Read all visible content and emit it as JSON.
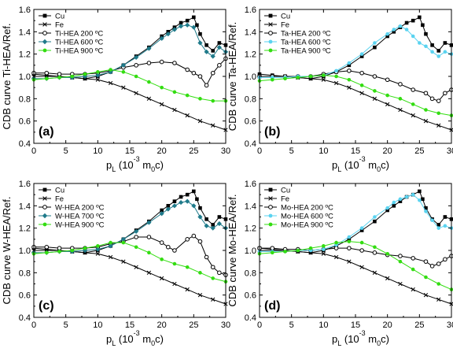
{
  "x_tick_labels": [
    "0",
    "5",
    "10",
    "15",
    "20",
    "25",
    "30"
  ],
  "y_tick_labels": [
    "0.4",
    "0.6",
    "0.8",
    "1.0",
    "1.2",
    "1.4",
    "1.6"
  ],
  "chart_data": [
    {
      "type": "line",
      "panel_label": "(a)",
      "ylabel": "CDB curve Ti-HEA/Ref.",
      "xlabel_main": "p",
      "xlabel_sub": "L",
      "xlabel_paren_open": " (10",
      "xlabel_exp": "-3",
      "xlabel_m": " m",
      "xlabel_msub": "0",
      "xlabel_end": "c)",
      "xlim": [
        0,
        30
      ],
      "ylim": [
        0.4,
        1.6
      ],
      "grid": false,
      "legend": "top-left",
      "x_ticks": [
        0,
        5,
        10,
        15,
        20,
        25,
        30
      ],
      "y_ticks": [
        0.4,
        0.6,
        0.8,
        1.0,
        1.2,
        1.4,
        1.6
      ],
      "series": [
        {
          "name": "Cu",
          "marker": "square-filled",
          "color": "#000000",
          "x": [
            0,
            2,
            4,
            6,
            8,
            10,
            12,
            14,
            16,
            18,
            20,
            21,
            22,
            23,
            24,
            25,
            25.5,
            26,
            27,
            28,
            29,
            30
          ],
          "y": [
            1.02,
            1.01,
            1.0,
            0.99,
            0.98,
            1.0,
            1.04,
            1.1,
            1.18,
            1.26,
            1.36,
            1.4,
            1.44,
            1.48,
            1.5,
            1.53,
            1.46,
            1.38,
            1.28,
            1.23,
            1.3,
            1.28
          ]
        },
        {
          "name": "Fe",
          "marker": "cross",
          "color": "#000000",
          "x": [
            0,
            2,
            4,
            6,
            8,
            10,
            12,
            14,
            16,
            18,
            20,
            22,
            24,
            26,
            28,
            30
          ],
          "y": [
            1.0,
            1.0,
            1.0,
            0.99,
            0.98,
            0.97,
            0.94,
            0.9,
            0.85,
            0.8,
            0.75,
            0.7,
            0.65,
            0.6,
            0.56,
            0.52
          ]
        },
        {
          "name": "Ti-HEA 200 ºC",
          "marker": "circle-open",
          "color": "#000000",
          "x": [
            0,
            2,
            4,
            6,
            8,
            10,
            12,
            14,
            16,
            18,
            20,
            22,
            24,
            25,
            26,
            27,
            28,
            29,
            30
          ],
          "y": [
            1.03,
            1.03,
            1.02,
            1.02,
            1.02,
            1.03,
            1.05,
            1.08,
            1.1,
            1.12,
            1.13,
            1.12,
            1.06,
            1.03,
            1.0,
            0.92,
            1.03,
            1.1,
            1.16
          ]
        },
        {
          "name": "Ti-HEA 600 ºC",
          "marker": "diamond-filled",
          "color": "#1f7a8a",
          "x": [
            0,
            2,
            4,
            6,
            8,
            10,
            12,
            14,
            16,
            18,
            20,
            21,
            22,
            23,
            24,
            25,
            26,
            27,
            28,
            29,
            30
          ],
          "y": [
            0.98,
            0.98,
            0.99,
            0.99,
            1.0,
            1.01,
            1.04,
            1.1,
            1.17,
            1.25,
            1.34,
            1.38,
            1.42,
            1.45,
            1.46,
            1.44,
            1.3,
            1.22,
            1.18,
            1.26,
            1.22
          ]
        },
        {
          "name": "Ti-HEA 900 ºC",
          "marker": "circle-filled",
          "color": "#33dd11",
          "x": [
            0,
            2,
            4,
            6,
            8,
            10,
            12,
            14,
            16,
            18,
            20,
            22,
            24,
            26,
            28,
            30
          ],
          "y": [
            0.97,
            0.98,
            0.99,
            1.0,
            1.02,
            1.04,
            1.06,
            1.04,
            1.0,
            0.95,
            0.9,
            0.86,
            0.83,
            0.8,
            0.78,
            0.78
          ]
        }
      ]
    },
    {
      "type": "line",
      "panel_label": "(b)",
      "ylabel": "CDB curve Ta-HEA/Ref.",
      "xlabel_main": "p",
      "xlabel_sub": "L",
      "xlabel_paren_open": " (10",
      "xlabel_exp": "-3",
      "xlabel_m": " m",
      "xlabel_msub": "0",
      "xlabel_end": "c)",
      "xlim": [
        0,
        30
      ],
      "ylim": [
        0.4,
        1.6
      ],
      "grid": false,
      "legend": "top-left",
      "x_ticks": [
        0,
        5,
        10,
        15,
        20,
        25,
        30
      ],
      "y_ticks": [
        0.4,
        0.6,
        0.8,
        1.0,
        1.2,
        1.4,
        1.6
      ],
      "series": [
        {
          "name": "Cu",
          "marker": "square-filled",
          "color": "#000000",
          "x": [
            0,
            2,
            4,
            6,
            8,
            10,
            12,
            14,
            16,
            18,
            20,
            21,
            22,
            23,
            24,
            25,
            25.5,
            26,
            27,
            28,
            29,
            30
          ],
          "y": [
            1.02,
            1.01,
            1.0,
            0.99,
            0.98,
            1.0,
            1.04,
            1.1,
            1.18,
            1.26,
            1.36,
            1.4,
            1.44,
            1.48,
            1.5,
            1.53,
            1.46,
            1.38,
            1.28,
            1.23,
            1.3,
            1.28
          ]
        },
        {
          "name": "Fe",
          "marker": "cross",
          "color": "#000000",
          "x": [
            0,
            2,
            4,
            6,
            8,
            10,
            12,
            14,
            16,
            18,
            20,
            22,
            24,
            26,
            28,
            30
          ],
          "y": [
            1.0,
            1.0,
            1.0,
            0.99,
            0.98,
            0.97,
            0.94,
            0.9,
            0.85,
            0.8,
            0.75,
            0.7,
            0.65,
            0.6,
            0.56,
            0.52
          ]
        },
        {
          "name": "Ta-HEA 200 ºC",
          "marker": "circle-open",
          "color": "#000000",
          "x": [
            0,
            2,
            4,
            6,
            8,
            10,
            12,
            14,
            16,
            18,
            20,
            22,
            24,
            26,
            27,
            28,
            29,
            30
          ],
          "y": [
            1.0,
            1.0,
            1.0,
            1.0,
            1.0,
            1.02,
            1.04,
            1.05,
            1.03,
            1.0,
            0.97,
            0.93,
            0.88,
            0.85,
            0.8,
            0.78,
            0.85,
            0.88
          ]
        },
        {
          "name": "Ta-HEA 600 ºC",
          "marker": "circle-filled",
          "color": "#5ad3f0",
          "x": [
            0,
            2,
            4,
            6,
            8,
            10,
            12,
            14,
            16,
            18,
            20,
            21,
            22,
            23,
            24,
            25,
            26,
            27,
            28,
            29,
            30
          ],
          "y": [
            0.99,
            0.99,
            0.99,
            1.0,
            1.0,
            1.01,
            1.05,
            1.12,
            1.2,
            1.3,
            1.38,
            1.42,
            1.45,
            1.42,
            1.36,
            1.3,
            1.27,
            1.22,
            1.18,
            1.22,
            1.2
          ]
        },
        {
          "name": "Ta-HEA 900 ºC",
          "marker": "circle-filled",
          "color": "#33dd11",
          "x": [
            0,
            2,
            4,
            6,
            8,
            10,
            12,
            14,
            16,
            18,
            20,
            22,
            24,
            26,
            28,
            30
          ],
          "y": [
            0.96,
            0.97,
            0.98,
            0.99,
            1.0,
            1.01,
            1.0,
            0.97,
            0.92,
            0.87,
            0.83,
            0.8,
            0.75,
            0.7,
            0.67,
            0.65
          ]
        }
      ]
    },
    {
      "type": "line",
      "panel_label": "(c)",
      "ylabel": "CDB curve W-HEA/Ref.",
      "xlabel_main": "p",
      "xlabel_sub": "L",
      "xlabel_paren_open": " (10",
      "xlabel_exp": "-3",
      "xlabel_m": " m",
      "xlabel_msub": "0",
      "xlabel_end": "c)",
      "xlim": [
        0,
        30
      ],
      "ylim": [
        0.4,
        1.6
      ],
      "grid": false,
      "legend": "top-left",
      "x_ticks": [
        0,
        5,
        10,
        15,
        20,
        25,
        30
      ],
      "y_ticks": [
        0.4,
        0.6,
        0.8,
        1.0,
        1.2,
        1.4,
        1.6
      ],
      "series": [
        {
          "name": "Cu",
          "marker": "square-filled",
          "color": "#000000",
          "x": [
            0,
            2,
            4,
            6,
            8,
            10,
            12,
            14,
            16,
            18,
            20,
            21,
            22,
            23,
            24,
            25,
            25.5,
            26,
            27,
            28,
            29,
            30
          ],
          "y": [
            1.02,
            1.01,
            1.0,
            0.99,
            0.98,
            1.0,
            1.04,
            1.1,
            1.18,
            1.26,
            1.36,
            1.4,
            1.44,
            1.48,
            1.5,
            1.53,
            1.46,
            1.38,
            1.28,
            1.23,
            1.3,
            1.28
          ]
        },
        {
          "name": "Fe",
          "marker": "cross",
          "color": "#000000",
          "x": [
            0,
            2,
            4,
            6,
            8,
            10,
            12,
            14,
            16,
            18,
            20,
            22,
            24,
            26,
            28,
            30
          ],
          "y": [
            1.0,
            1.0,
            1.0,
            0.99,
            0.98,
            0.97,
            0.94,
            0.9,
            0.85,
            0.8,
            0.75,
            0.7,
            0.65,
            0.6,
            0.56,
            0.52
          ]
        },
        {
          "name": "W-HEA 200 ºC",
          "marker": "circle-open",
          "color": "#000000",
          "x": [
            0,
            2,
            4,
            6,
            8,
            10,
            12,
            14,
            16,
            18,
            20,
            21,
            22,
            24,
            25,
            26,
            27,
            28,
            29,
            30
          ],
          "y": [
            1.03,
            1.03,
            1.02,
            1.02,
            1.02,
            1.03,
            1.06,
            1.08,
            1.12,
            1.12,
            1.07,
            1.03,
            1.0,
            1.1,
            1.13,
            1.08,
            0.94,
            0.85,
            0.8,
            0.78
          ]
        },
        {
          "name": "W-HEA 700 ºC",
          "marker": "diamond-filled",
          "color": "#1f7a8a",
          "x": [
            0,
            2,
            4,
            6,
            8,
            10,
            12,
            14,
            16,
            18,
            20,
            21,
            22,
            23,
            24,
            25,
            26,
            27,
            28,
            29,
            30
          ],
          "y": [
            0.98,
            0.98,
            0.99,
            0.99,
            1.0,
            1.01,
            1.04,
            1.1,
            1.17,
            1.25,
            1.33,
            1.37,
            1.4,
            1.43,
            1.44,
            1.4,
            1.3,
            1.22,
            1.2,
            1.24,
            1.2
          ]
        },
        {
          "name": "W-HEA 900 ºC",
          "marker": "circle-filled",
          "color": "#33dd11",
          "x": [
            0,
            2,
            4,
            6,
            8,
            10,
            12,
            14,
            16,
            18,
            20,
            22,
            24,
            26,
            28,
            30
          ],
          "y": [
            0.97,
            0.98,
            0.99,
            1.0,
            1.02,
            1.04,
            1.07,
            1.07,
            1.03,
            0.98,
            0.92,
            0.88,
            0.85,
            0.8,
            0.75,
            0.72
          ]
        }
      ]
    },
    {
      "type": "line",
      "panel_label": "(d)",
      "ylabel": "CDB curve Mo-HEA/Ref.",
      "xlabel_main": "p",
      "xlabel_sub": "L",
      "xlabel_paren_open": " (10",
      "xlabel_exp": "-3",
      "xlabel_m": " m",
      "xlabel_msub": "0",
      "xlabel_end": "c)",
      "xlim": [
        0,
        30
      ],
      "ylim": [
        0.4,
        1.6
      ],
      "grid": false,
      "legend": "top-left",
      "x_ticks": [
        0,
        5,
        10,
        15,
        20,
        25,
        30
      ],
      "y_ticks": [
        0.4,
        0.6,
        0.8,
        1.0,
        1.2,
        1.4,
        1.6
      ],
      "series": [
        {
          "name": "Cu",
          "marker": "square-filled",
          "color": "#000000",
          "x": [
            0,
            2,
            4,
            6,
            8,
            10,
            12,
            14,
            16,
            18,
            20,
            21,
            22,
            23,
            24,
            25,
            25.5,
            26,
            27,
            28,
            29,
            30
          ],
          "y": [
            1.02,
            1.01,
            1.0,
            0.99,
            0.98,
            1.0,
            1.04,
            1.1,
            1.18,
            1.26,
            1.36,
            1.4,
            1.44,
            1.48,
            1.5,
            1.53,
            1.46,
            1.38,
            1.28,
            1.23,
            1.3,
            1.28
          ]
        },
        {
          "name": "Fe",
          "marker": "cross",
          "color": "#000000",
          "x": [
            0,
            2,
            4,
            6,
            8,
            10,
            12,
            14,
            16,
            18,
            20,
            22,
            24,
            26,
            28,
            30
          ],
          "y": [
            1.0,
            1.0,
            1.0,
            0.99,
            0.98,
            0.97,
            0.94,
            0.9,
            0.85,
            0.8,
            0.75,
            0.7,
            0.65,
            0.6,
            0.56,
            0.52
          ]
        },
        {
          "name": "Mo-HEA 200 ºC",
          "marker": "circle-open",
          "color": "#000000",
          "x": [
            0,
            2,
            4,
            6,
            8,
            10,
            12,
            14,
            16,
            18,
            20,
            22,
            24,
            26,
            27,
            28,
            29,
            30
          ],
          "y": [
            1.02,
            1.02,
            1.01,
            1.01,
            1.0,
            1.01,
            1.02,
            1.02,
            1.0,
            0.98,
            0.96,
            0.95,
            0.93,
            0.9,
            0.86,
            0.88,
            0.92,
            0.95
          ]
        },
        {
          "name": "Mo-HEA 600 ºC",
          "marker": "circle-filled",
          "color": "#5ad3f0",
          "x": [
            0,
            2,
            4,
            6,
            8,
            10,
            12,
            14,
            16,
            18,
            20,
            21,
            22,
            23,
            24,
            25,
            26,
            27,
            28,
            29,
            30
          ],
          "y": [
            0.99,
            0.99,
            0.99,
            1.0,
            1.0,
            1.01,
            1.05,
            1.12,
            1.2,
            1.3,
            1.38,
            1.43,
            1.46,
            1.48,
            1.5,
            1.45,
            1.35,
            1.27,
            1.2,
            1.22,
            1.2
          ]
        },
        {
          "name": "Mo-HEA 900 ºC",
          "marker": "circle-filled",
          "color": "#33dd11",
          "x": [
            0,
            2,
            4,
            6,
            8,
            10,
            12,
            14,
            16,
            18,
            20,
            22,
            24,
            26,
            28,
            30
          ],
          "y": [
            0.97,
            0.98,
            0.99,
            1.0,
            1.02,
            1.04,
            1.07,
            1.08,
            1.07,
            1.03,
            0.97,
            0.9,
            0.83,
            0.76,
            0.7,
            0.65
          ]
        }
      ]
    }
  ]
}
